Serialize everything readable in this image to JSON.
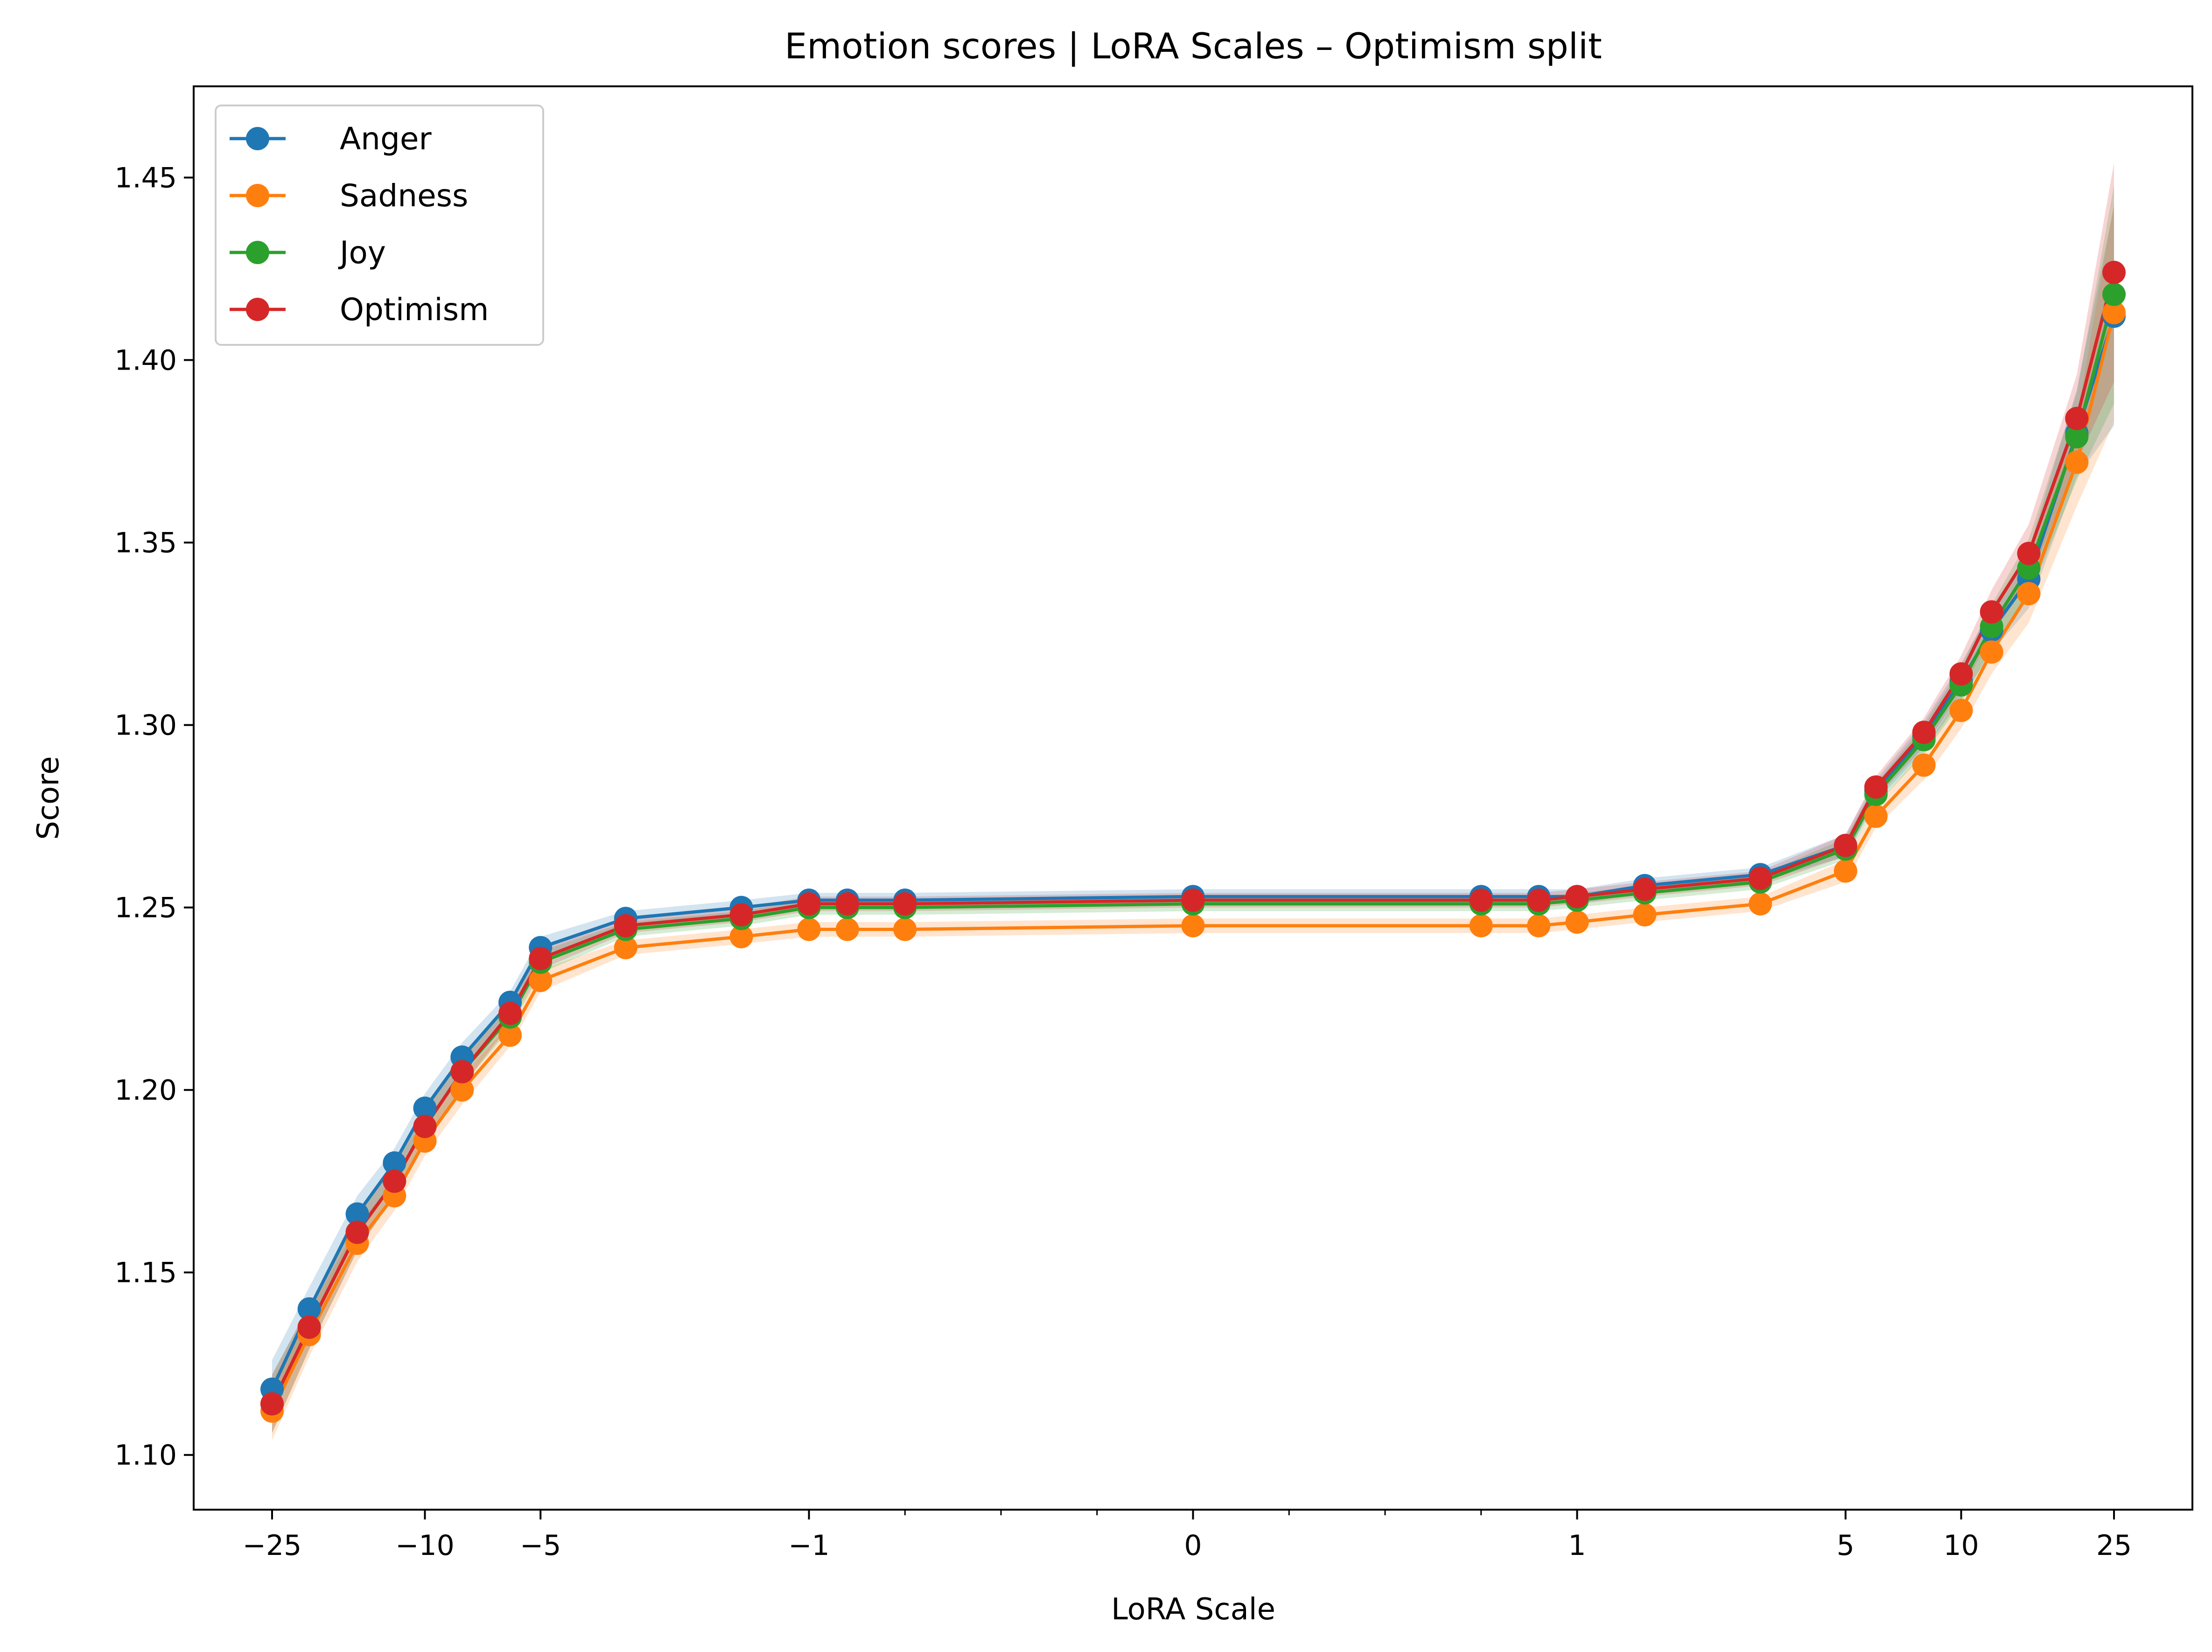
{
  "chart_data": {
    "type": "line",
    "title": "Emotion scores | LoRA Scales – Optimism split",
    "xlabel": "LoRA Scale",
    "ylabel": "Score",
    "x_scale": "symlog",
    "x_linthresh": 1,
    "xlim": [
      -40,
      40
    ],
    "ylim": [
      1.085,
      1.475
    ],
    "x_ticks": [
      {
        "value": -25,
        "label": "−25"
      },
      {
        "value": -10,
        "label": "−10"
      },
      {
        "value": -5,
        "label": "−5"
      },
      {
        "value": -1,
        "label": "−1"
      },
      {
        "value": 0,
        "label": "0"
      },
      {
        "value": 1,
        "label": "1"
      },
      {
        "value": 5,
        "label": "5"
      },
      {
        "value": 10,
        "label": "10"
      },
      {
        "value": 25,
        "label": "25"
      }
    ],
    "x_minor_ticks": [
      -0.75,
      -0.5,
      -0.25,
      0.25,
      0.5,
      0.75
    ],
    "y_ticks": [
      {
        "value": 1.1,
        "label": "1.10"
      },
      {
        "value": 1.15,
        "label": "1.15"
      },
      {
        "value": 1.2,
        "label": "1.20"
      },
      {
        "value": 1.25,
        "label": "1.25"
      },
      {
        "value": 1.3,
        "label": "1.30"
      },
      {
        "value": 1.35,
        "label": "1.35"
      },
      {
        "value": 1.4,
        "label": "1.40"
      },
      {
        "value": 1.45,
        "label": "1.45"
      }
    ],
    "grid": false,
    "legend_position": "top-left",
    "x": [
      -25,
      -20,
      -15,
      -12,
      -10,
      -8,
      -6,
      -5,
      -3,
      -1.5,
      -1,
      -0.9,
      -0.75,
      0,
      0.75,
      0.9,
      1,
      1.5,
      3,
      5,
      6,
      8,
      10,
      12,
      15,
      20,
      25
    ],
    "series": [
      {
        "name": "Anger",
        "color": "#1f77b4",
        "values": [
          1.118,
          1.14,
          1.166,
          1.18,
          1.195,
          1.209,
          1.224,
          1.239,
          1.247,
          1.25,
          1.252,
          1.252,
          1.252,
          1.253,
          1.253,
          1.253,
          1.253,
          1.256,
          1.259,
          1.267,
          1.282,
          1.297,
          1.312,
          1.326,
          1.34,
          1.38,
          1.412
        ]
      },
      {
        "name": "Sadness",
        "color": "#ff7f0e",
        "values": [
          1.112,
          1.133,
          1.158,
          1.171,
          1.186,
          1.2,
          1.215,
          1.23,
          1.239,
          1.242,
          1.244,
          1.244,
          1.244,
          1.245,
          1.245,
          1.245,
          1.246,
          1.248,
          1.251,
          1.26,
          1.275,
          1.289,
          1.304,
          1.32,
          1.336,
          1.372,
          1.413
        ]
      },
      {
        "name": "Joy",
        "color": "#2ca02c",
        "values": [
          1.114,
          1.135,
          1.161,
          1.175,
          1.19,
          1.205,
          1.22,
          1.235,
          1.244,
          1.247,
          1.25,
          1.25,
          1.25,
          1.251,
          1.251,
          1.251,
          1.252,
          1.254,
          1.257,
          1.266,
          1.281,
          1.296,
          1.311,
          1.327,
          1.343,
          1.379,
          1.418
        ]
      },
      {
        "name": "Optimism",
        "color": "#d62728",
        "values": [
          1.114,
          1.135,
          1.161,
          1.175,
          1.19,
          1.205,
          1.221,
          1.236,
          1.245,
          1.248,
          1.251,
          1.251,
          1.251,
          1.252,
          1.252,
          1.252,
          1.253,
          1.255,
          1.258,
          1.267,
          1.283,
          1.298,
          1.314,
          1.331,
          1.347,
          1.384,
          1.424
        ]
      }
    ],
    "band_halfwidth": [
      0.008,
      0.006,
      0.005,
      0.004,
      0.004,
      0.004,
      0.003,
      0.003,
      0.002,
      0.002,
      0.002,
      0.002,
      0.002,
      0.002,
      0.002,
      0.002,
      0.002,
      0.002,
      0.002,
      0.003,
      0.003,
      0.004,
      0.005,
      0.006,
      0.008,
      0.012,
      0.03
    ]
  }
}
